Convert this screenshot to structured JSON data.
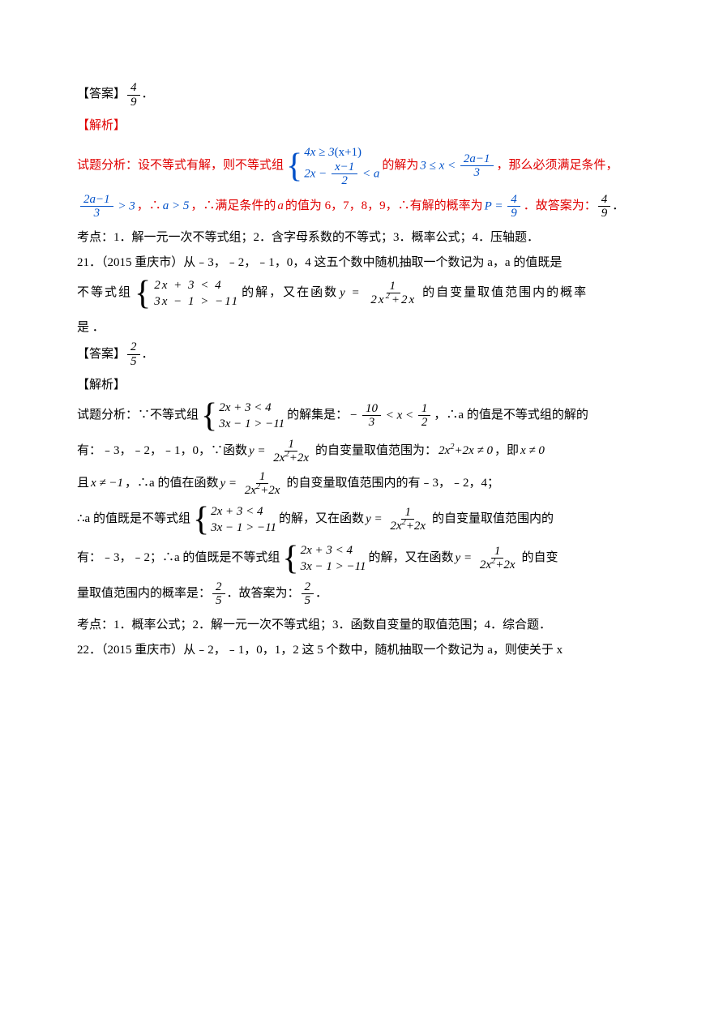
{
  "s1_answer_label": "【答案】",
  "s1_answer_frac_num": "4",
  "s1_answer_frac_den": "9",
  "s1_answer_period": "．",
  "s1_analysis_label": "【解析】",
  "s1_line1_p1": "试题分析：设不等式有解，则不等式组",
  "s1_sys_top_1": "4x ≥ 3",
  "s1_sys_top_paren": "(x+1)",
  "s1_sys_bot_1": "2x − ",
  "s1_sys_bot_frac_num": "x−1",
  "s1_sys_bot_frac_den": "2",
  "s1_sys_bot_2": " < a",
  "s1_line1_p2": "的解为",
  "s1_ineq_1": "3 ≤ x < ",
  "s1_ineq_frac_num": "2a−1",
  "s1_ineq_frac_den": "3",
  "s1_line1_p3": "，那么必须满足条件，",
  "s1_line2_frac_num": "2a−1",
  "s1_line2_frac_den": "3",
  "s1_line2_gt": " > 3",
  "s1_line2_p1": "，∴ ",
  "s1_line2_math1": "a > 5",
  "s1_line2_p2": "，∴满足条件的 ",
  "s1_line2_avar": "a",
  "s1_line2_p3": " 的值为 6，7，8，9，∴有解的概率为 ",
  "s1_line2_prob": "P = ",
  "s1_line2_prob_num": "4",
  "s1_line2_prob_den": "9",
  "s1_line2_p4": "．故答案为：",
  "s1_line2_ans_num": "4",
  "s1_line2_ans_den": "9",
  "s1_line2_p5": "．",
  "s1_kaodian": "考点：1．解一元一次不等式组；2．含字母系数的不等式；3．概率公式；4．压轴题．",
  "s2_q_p1": "21．（2015 重庆市）从﹣3，﹣2，﹣1，0，4 这五个数中随机抽取一个数记为 a，a 的值既是",
  "s2_q_p2": "不等式组",
  "s2_sys_top": "2x + 3 < 4",
  "s2_sys_bot": "3x − 1 > −11",
  "s2_q_p3": "的解，又在函数",
  "s2_func_y": "y = ",
  "s2_func_num": "1",
  "s2_func_den": "2x² + 2x",
  "s2_q_p4": "的自变量取值范围内的概率",
  "s2_q_p5": "是        ．",
  "s2_answer_label": "【答案】",
  "s2_ans_num": "2",
  "s2_ans_den": "5",
  "s2_ans_period": "．",
  "s2_analysis_label": "【解析】",
  "s2_l1_p1": "试题分析：∵不等式组",
  "s2_l1_p2": "的解集是：",
  "s2_l1_ineq_left": "− ",
  "s2_l1_ineq_left_num": "10",
  "s2_l1_ineq_left_den": "3",
  "s2_l1_ineq_mid": " < x < ",
  "s2_l1_ineq_right_num": "1",
  "s2_l1_ineq_right_den": "2",
  "s2_l1_p3": "，∴a 的值是不等式组的解的",
  "s2_l2_p1": "有：﹣3，﹣2，﹣1，0，∵函数",
  "s2_l2_p2": "的自变量取值范围为：",
  "s2_l2_math1": "2x² + 2x ≠ 0",
  "s2_l2_p3": "，即",
  "s2_l2_math2": "x ≠ 0",
  "s2_l3_p1": "且",
  "s2_l3_math1": "x ≠ −1",
  "s2_l3_p2": "，∴a 的值在函数",
  "s2_l3_p3": "的自变量取值范围内的有﹣3，﹣2，4；",
  "s2_l4_p1": "∴a 的值既是不等式组",
  "s2_l4_p2": "的解，又在函数",
  "s2_l4_p3": "的自变量取值范围内的",
  "s2_l5_p1": "有：﹣3，﹣2；∴a 的值既是不等式组",
  "s2_l5_p2": "的解，又在函数",
  "s2_l5_p3": "的自变",
  "s2_l6_p1": "量取值范围内的概率是：",
  "s2_l6_p2": "．故答案为：",
  "s2_l6_p3": "．",
  "s2_kaodian": "考点：1．概率公式；2．解一元一次不等式组；3．函数自变量的取值范围；4．综合题．",
  "s3_q": "22．（2015 重庆市）从﹣2，﹣1，0，1，2 这 5 个数中，随机抽取一个数记为 a，则使关于 x"
}
